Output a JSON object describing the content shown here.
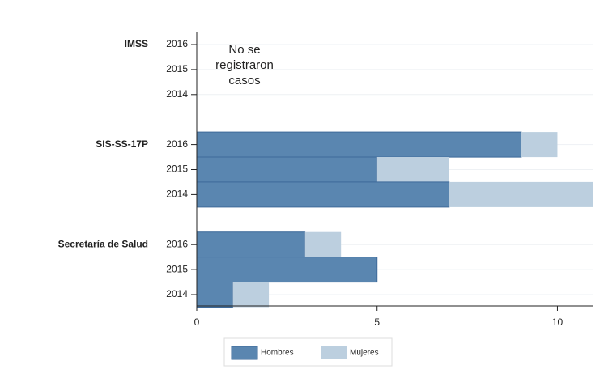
{
  "chart_data": {
    "type": "stacked-barh",
    "groups": [
      "IMSS",
      "SIS-SS-17P",
      "Secretaría de Salud"
    ],
    "categories": [
      "2016",
      "2015",
      "2014",
      "2016",
      "2015",
      "2014",
      "2016",
      "2015",
      "2014"
    ],
    "series": [
      {
        "name": "Hombres",
        "color": "#5a86b0",
        "values": [
          null,
          null,
          null,
          9,
          5,
          7,
          3,
          5,
          1
        ]
      },
      {
        "name": "Mujeres",
        "color": "#bccfdf",
        "values": [
          null,
          null,
          null,
          1,
          2,
          4,
          1,
          0,
          1
        ]
      }
    ],
    "annotation": [
      "No se",
      "registraron",
      "casos"
    ],
    "xlim": [
      0,
      11
    ],
    "xticks": [
      0,
      5,
      10
    ],
    "grid": true,
    "legend": "bottom"
  }
}
